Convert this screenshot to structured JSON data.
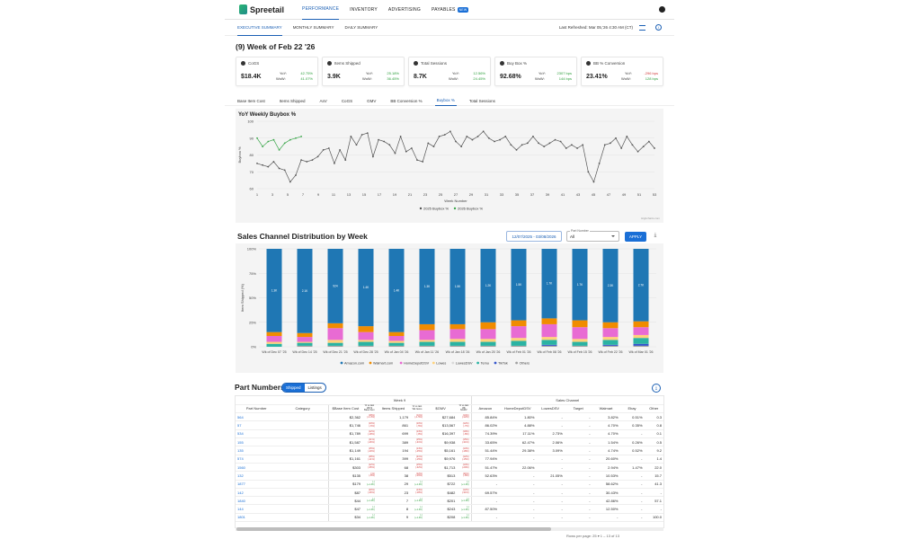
{
  "brand": {
    "name": "Spreetail",
    "color": "#2ab673"
  },
  "nav": {
    "items": [
      "PERFORMANCE",
      "INVENTORY",
      "ADVERTISING",
      "PAYABLES"
    ],
    "badge": "NEW"
  },
  "subnav": {
    "items": [
      "EXECUTIVE SUMMARY",
      "MONTHLY SUMMARY",
      "DAILY SUMMARY"
    ],
    "refreshed": "Last Refreshed: Mar 05,'26 4:30 AM (CT)"
  },
  "week_title": "(9) Week of Feb 22 '26",
  "kpis": [
    {
      "title": "CoGS",
      "value": "$18.4K",
      "yoy_label": "YoY:",
      "yoy": "42.75%",
      "wow_label": "WoW:",
      "wow": "41.07%",
      "yoy_color": "green",
      "wow_color": "green"
    },
    {
      "title": "Items Shipped",
      "value": "3.9K",
      "yoy_label": "YoY:",
      "yoy": "25.18%",
      "wow_label": "WoW:",
      "wow": "36.45%",
      "yoy_color": "green",
      "wow_color": "green"
    },
    {
      "title": "Total Sessions",
      "value": "8.7K",
      "yoy_label": "YoY:",
      "yoy": "12.56%",
      "wow_label": "WoW:",
      "wow": "24.45%",
      "yoy_color": "green",
      "wow_color": "green"
    },
    {
      "title": "Buy Box %",
      "value": "92.68%",
      "yoy_label": "YoY:",
      "yoy": "2307 bps",
      "wow_label": "WoW:",
      "wow": "144 bps",
      "yoy_color": "green",
      "wow_color": "green"
    },
    {
      "title": "BB % Conversion",
      "value": "23.41%",
      "yoy_label": "YoY:",
      "yoy": "-296 bps",
      "wow_label": "WoW:",
      "wow": "128 bps",
      "yoy_color": "red",
      "wow_color": "green"
    }
  ],
  "chart_tabs": [
    "Base Item Cost",
    "Items Shipped",
    "AsV",
    "CoGS",
    "GMV",
    "BB Conversion %",
    "Buybox %",
    "Total Sessions"
  ],
  "line_chart": {
    "title": "YoY Weekly Buybox %",
    "xlabel": "Week Number",
    "ylabel": "Buybox %",
    "yticks": [
      60,
      70,
      80,
      90,
      100
    ],
    "xticks": [
      1,
      3,
      5,
      7,
      9,
      11,
      13,
      15,
      17,
      19,
      21,
      23,
      25,
      27,
      29,
      31,
      33,
      35,
      37,
      39,
      41,
      43,
      45,
      47,
      49,
      51,
      53
    ],
    "legend": [
      "2025 Buybox %",
      "2026 Buybox %"
    ],
    "credit": "Highcharts.com",
    "series_2025": [
      75,
      74,
      73,
      76,
      72,
      71,
      64,
      68,
      77,
      76,
      77,
      79,
      83,
      84,
      75,
      83,
      77,
      91,
      86,
      92,
      93,
      79,
      89,
      88,
      86,
      81,
      91,
      82,
      84,
      77,
      76,
      87,
      85,
      91,
      92,
      94,
      88,
      85,
      91,
      89,
      91,
      94,
      90,
      88,
      89,
      91,
      86,
      83,
      86,
      87,
      91,
      87,
      85,
      87,
      89,
      88,
      84,
      86,
      84,
      86,
      70,
      64,
      75,
      86,
      87,
      90,
      84,
      91,
      86,
      82,
      85,
      88,
      84
    ],
    "series_2026": [
      90,
      85,
      88,
      89,
      83,
      87,
      89,
      90,
      91
    ]
  },
  "sales_channel": {
    "title": "Sales Channel Distribution by Week",
    "daterange": "12/07/2025 - 03/08/2026",
    "part_label": "Part Number",
    "part_value": "All",
    "apply": "APPLY",
    "ylabel": "Item Shipped (%)",
    "yticks": [
      "100%",
      "75%",
      "50%",
      "25%",
      "0%"
    ],
    "channels": [
      "Amazon.com",
      "Walmart.com",
      "HomeDepotDSV",
      "Lowes",
      "LowesDSV",
      "Temu",
      "TikTok",
      "Others"
    ],
    "colors": [
      "#1f77b4",
      "#f08c00",
      "#e86bd3",
      "#ffd27a",
      "#d9d9d9",
      "#2ab3a3",
      "#3355cc",
      "#a0a0a0"
    ],
    "weeks": [
      {
        "label": "Wk of Dec 07 '25",
        "amazon": "1.3K",
        "v": [
          85,
          4,
          6,
          2,
          0,
          3,
          0,
          0
        ]
      },
      {
        "label": "Wk of Dec 14 '25",
        "amazon": "2.1K",
        "v": [
          86,
          4,
          5,
          1,
          0,
          3,
          0,
          1
        ]
      },
      {
        "label": "Wk of Dec 21 '25",
        "amazon": "924",
        "v": [
          76,
          5,
          12,
          3,
          0,
          3,
          0,
          1
        ]
      },
      {
        "label": "Wk of Dec 28 '25",
        "amazon": "1.4K",
        "v": [
          79,
          6,
          8,
          2,
          0,
          4,
          0,
          1
        ]
      },
      {
        "label": "Wk of Jan 04 '26",
        "amazon": "1.4K",
        "v": [
          85,
          4,
          5,
          2,
          0,
          3,
          0,
          1
        ]
      },
      {
        "label": "Wk of Jan 11 '26",
        "amazon": "1.3K",
        "v": [
          77,
          6,
          10,
          2,
          0,
          4,
          0,
          1
        ]
      },
      {
        "label": "Wk of Jan 18 '26",
        "amazon": "1.5K",
        "v": [
          77,
          5,
          10,
          3,
          0,
          4,
          0,
          1
        ]
      },
      {
        "label": "Wk of Jan 25 '26",
        "amazon": "1.2K",
        "v": [
          75,
          7,
          10,
          3,
          0,
          4,
          0,
          1
        ]
      },
      {
        "label": "Wk of Feb 01 '26",
        "amazon": "1.5K",
        "v": [
          73,
          6,
          12,
          3,
          0,
          5,
          0,
          1
        ]
      },
      {
        "label": "Wk of Feb 08 '26",
        "amazon": "1.7K",
        "v": [
          71,
          6,
          13,
          3,
          0,
          5,
          1,
          1
        ]
      },
      {
        "label": "Wk of Feb 15 '26",
        "amazon": "1.7K",
        "v": [
          73,
          7,
          12,
          3,
          0,
          4,
          0,
          1
        ]
      },
      {
        "label": "Wk of Feb 22 '26",
        "amazon": "2.3K",
        "v": [
          75,
          6,
          9,
          3,
          0,
          5,
          1,
          1
        ]
      },
      {
        "label": "Wk of Mar 01 '26",
        "amazon": "2.7K",
        "v": [
          74,
          6,
          8,
          3,
          0,
          6,
          2,
          1
        ]
      }
    ]
  },
  "parts": {
    "title": "Part Numbers",
    "toggle": [
      "Shipped",
      "Listings"
    ],
    "group_week": "Week 9",
    "group_channel": "Sales Channel",
    "headers": [
      "Part Number",
      "Category",
      "$Base Item Cost",
      "% vs last Wk $ Base Item",
      "Items Shipped",
      "% vs last Wk Items",
      "$GMV",
      "% vs last Wk $GMV",
      "Amazon",
      "HomeDepotDSV",
      "LowesDSV",
      "Target",
      "Walmart",
      "Ebay",
      "Other"
    ],
    "rows": [
      [
        "564",
        "",
        "$2,362",
        "(18%) (-1.3%)",
        "1,179",
        "(11%) (-1.5%)",
        "$27,684",
        "(14%) (-12%)",
        "85.84%",
        "1.80%",
        "-",
        "-",
        "3.82%",
        "0.51%",
        "0.3"
      ],
      [
        "57",
        "",
        "$1,746",
        "(10%) (-6%)",
        "861",
        "(10%) (-5%)",
        "$13,567",
        "(12%) (-7%)",
        "86.02%",
        "4.88%",
        "-",
        "-",
        "4.70%",
        "0.35%",
        "0.8"
      ],
      [
        "534",
        "",
        "$1,789",
        "(12%) (-18%)",
        "699",
        "(13%) (-8%)",
        "$16,397",
        "(19%) (-8%)",
        "74.39%",
        "17.11%",
        "2.73%",
        "-",
        "4.70%",
        "-",
        "0.1"
      ],
      [
        "155",
        "",
        "$1,587",
        "(11%) (-26%)",
        "389",
        "(15%) (-31%)",
        "$9,938",
        "(15%) (-31%)",
        "33.65%",
        "62.47%",
        "2.06%",
        "-",
        "1.54%",
        "0.26%",
        "0.5"
      ],
      [
        "135",
        "",
        "$1,149",
        "(15%) (-40%)",
        "194",
        "(14%) (-45%)",
        "$5,161",
        "(13%) (-18%)",
        "51.44%",
        "29.38%",
        "3.09%",
        "-",
        "4.74%",
        "0.52%",
        "9.2"
      ],
      [
        "574",
        "",
        "$1,161",
        "(18%) (-11%)",
        "399",
        "(21%) (-15%)",
        "$9,976",
        "(12%) (-15%)",
        "77.94%",
        "-",
        "-",
        "-",
        "20.60%",
        "-",
        "1.4"
      ],
      [
        "1560",
        "",
        "$303",
        "(12%) (-35%)",
        "68",
        "(15%) (-32%)",
        "$1,713",
        "(13%) (-29%)",
        "51.47%",
        "22.06%",
        "-",
        "-",
        "2.94%",
        "1.47%",
        "22.0"
      ],
      [
        "132",
        "",
        "$135",
        "(-%) (-8%)",
        "38",
        "(12%) (-16%)",
        "$513",
        "(11%) (-8%)",
        "52.63%",
        "-",
        "21.05%",
        "-",
        "10.53%",
        "-",
        "15.7"
      ],
      [
        "1877",
        "",
        "$179",
        "(-) (+1.4K)",
        "29",
        "(-) (+1.4K)",
        "$722",
        "(-) (+1.4K)",
        "-",
        "-",
        "-",
        "-",
        "58.62%",
        "-",
        "41.3"
      ],
      [
        "142",
        "",
        "$87",
        "(20%) (-26%)",
        "23",
        "(14%) (-18%)",
        "$482",
        "(12%) (-31%)",
        "69.57%",
        "-",
        "-",
        "-",
        "30.43%",
        "-",
        "-"
      ],
      [
        "1840",
        "",
        "$44",
        "(-) (+1.4K)",
        "7",
        "(-) (+1.4K)",
        "$201",
        "(-) (+1.4K)",
        "-",
        "-",
        "-",
        "-",
        "42.86%",
        "-",
        "57.1"
      ],
      [
        "144",
        "",
        "$47",
        "(-) (+1.4K)",
        "8",
        "(-) (+1.4K)",
        "$243",
        "(-) (+1.4K)",
        "87.50%",
        "-",
        "-",
        "-",
        "12.50%",
        "-",
        "-"
      ],
      [
        "1801",
        "",
        "$34",
        "(-) (+1.4K)",
        "9",
        "(-) (+1.4K)",
        "$208",
        "(-) (+1.4K)",
        "-",
        "-",
        "-",
        "-",
        "-",
        "-",
        "100.0"
      ]
    ],
    "footer": "Rows per page:  25   ▾     1 – 13 of 13"
  }
}
